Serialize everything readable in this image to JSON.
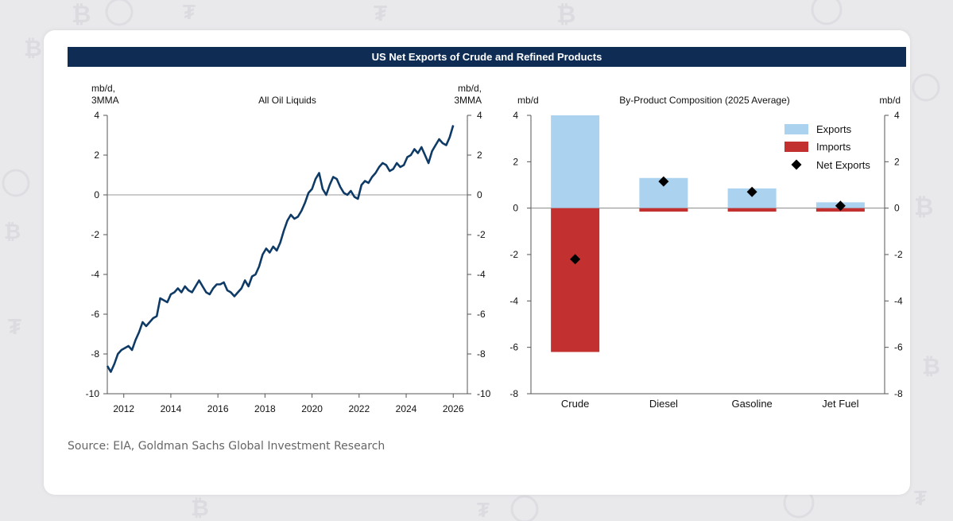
{
  "banner_title": "US Net Exports of Crude and Refined Products",
  "source": "Source: EIA, Goldman Sachs Global Investment Research",
  "colors": {
    "banner": "#0e2c54",
    "line": "#0e3a66",
    "exports": "#abd3f0",
    "imports": "#c23130",
    "net_marker": "#000000"
  },
  "chart_data": [
    {
      "type": "line",
      "title": "All Oil Liquids",
      "ylabel_left": [
        "mb/d,",
        "3MMA"
      ],
      "ylabel_right": [
        "mb/d,",
        "3MMA"
      ],
      "xlim": [
        2011.3,
        2026.6
      ],
      "ylim": [
        -10,
        4
      ],
      "xticks": [
        2012,
        2014,
        2016,
        2018,
        2020,
        2022,
        2024,
        2026
      ],
      "yticks": [
        4,
        2,
        0,
        -2,
        -4,
        -6,
        -8,
        -10
      ],
      "zero_line": true,
      "series": [
        {
          "x": [
            2011.3,
            2011.45,
            2011.6,
            2011.75,
            2011.9,
            2012.05,
            2012.2,
            2012.35,
            2012.5,
            2012.65,
            2012.8,
            2012.95,
            2013.1,
            2013.25,
            2013.4,
            2013.55,
            2013.7,
            2013.85,
            2014.0,
            2014.15,
            2014.3,
            2014.45,
            2014.6,
            2014.75,
            2014.9,
            2015.05,
            2015.2,
            2015.35,
            2015.5,
            2015.65,
            2015.8,
            2015.95,
            2016.1,
            2016.25,
            2016.4,
            2016.55,
            2016.7,
            2016.85,
            2017.0,
            2017.15,
            2017.3,
            2017.45,
            2017.6,
            2017.75,
            2017.9,
            2018.05,
            2018.2,
            2018.35,
            2018.5,
            2018.65,
            2018.8,
            2018.95,
            2019.1,
            2019.25,
            2019.4,
            2019.55,
            2019.7,
            2019.85,
            2020.0,
            2020.15,
            2020.3,
            2020.45,
            2020.6,
            2020.75,
            2020.9,
            2021.05,
            2021.2,
            2021.35,
            2021.5,
            2021.65,
            2021.8,
            2021.95,
            2022.1,
            2022.25,
            2022.4,
            2022.55,
            2022.7,
            2022.85,
            2023.0,
            2023.15,
            2023.3,
            2023.45,
            2023.6,
            2023.75,
            2023.9,
            2024.05,
            2024.2,
            2024.35,
            2024.5,
            2024.65,
            2024.8,
            2024.95,
            2025.1,
            2025.25,
            2025.4,
            2025.55,
            2025.7,
            2025.85,
            2026.0
          ],
          "y": [
            -8.6,
            -8.9,
            -8.5,
            -8.0,
            -7.8,
            -7.7,
            -7.6,
            -7.8,
            -7.3,
            -6.9,
            -6.4,
            -6.6,
            -6.4,
            -6.2,
            -6.1,
            -5.2,
            -5.3,
            -5.4,
            -5.0,
            -4.9,
            -4.7,
            -4.9,
            -4.6,
            -4.8,
            -4.9,
            -4.6,
            -4.3,
            -4.6,
            -4.9,
            -5.0,
            -4.7,
            -4.5,
            -4.5,
            -4.4,
            -4.8,
            -4.9,
            -5.1,
            -4.9,
            -4.7,
            -4.3,
            -4.6,
            -4.1,
            -4.0,
            -3.6,
            -3.0,
            -2.7,
            -2.9,
            -2.6,
            -2.8,
            -2.4,
            -1.8,
            -1.3,
            -1.0,
            -1.2,
            -1.1,
            -0.8,
            -0.4,
            0.1,
            0.3,
            0.8,
            1.1,
            0.3,
            0.0,
            0.5,
            0.9,
            0.8,
            0.4,
            0.1,
            0.0,
            0.2,
            -0.1,
            -0.2,
            0.5,
            0.7,
            0.6,
            0.9,
            1.1,
            1.4,
            1.6,
            1.5,
            1.2,
            1.3,
            1.6,
            1.4,
            1.5,
            1.9,
            2.0,
            2.3,
            2.1,
            2.4,
            2.0,
            1.6,
            2.2,
            2.5,
            2.8,
            2.6,
            2.5,
            2.9,
            3.5
          ]
        }
      ]
    },
    {
      "type": "bar",
      "title": "By-Product Composition (2025 Average)",
      "ylabel_left": "mb/d",
      "ylabel_right": "mb/d",
      "categories": [
        "Crude",
        "Diesel",
        "Gasoline",
        "Jet Fuel"
      ],
      "ylim": [
        -8,
        4
      ],
      "yticks": [
        4,
        2,
        0,
        -2,
        -4,
        -6,
        -8
      ],
      "legend_position": "top-right",
      "series": [
        {
          "name": "Exports",
          "type": "bar",
          "values": [
            4.0,
            1.3,
            0.85,
            0.25
          ]
        },
        {
          "name": "Imports",
          "type": "bar",
          "values": [
            -6.2,
            -0.15,
            -0.15,
            -0.15
          ]
        },
        {
          "name": "Net Exports",
          "type": "scatter",
          "values": [
            -2.2,
            1.15,
            0.7,
            0.1
          ]
        }
      ]
    }
  ]
}
